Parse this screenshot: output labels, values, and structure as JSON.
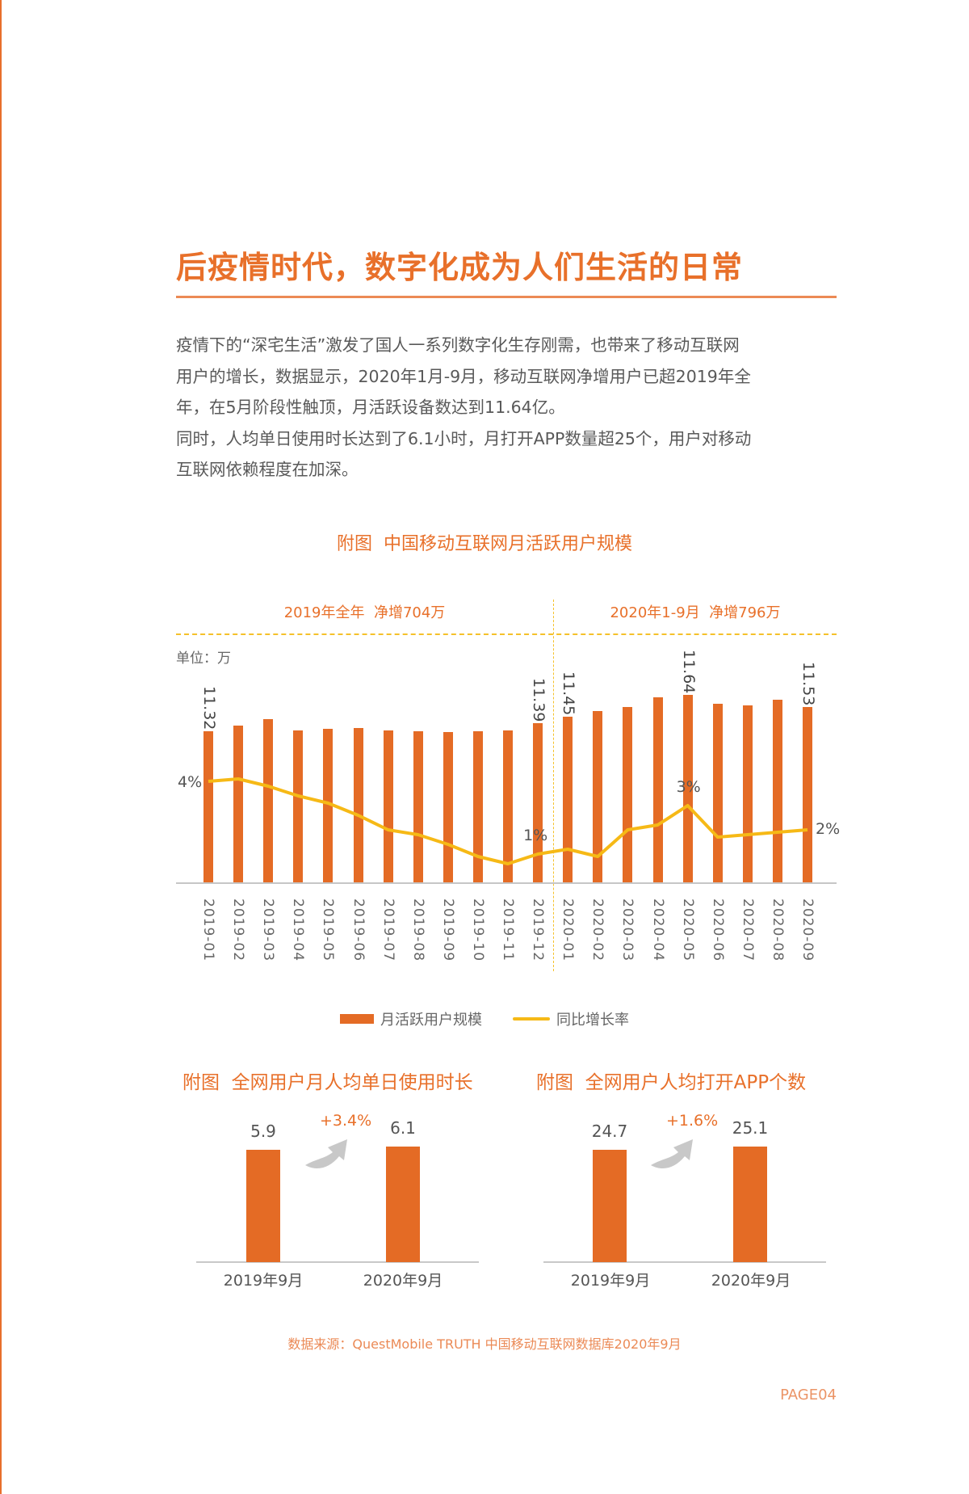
{
  "page": {
    "title": "后疫情时代，数字化成为人们生活的日常",
    "body_lines": [
      "疫情下的“深宅生活”激发了国人一系列数字化生存刚需，也带来了移动互联网",
      "用户的增长，数据显示，2020年1月-9月，移动互联网净增用户已超2019年全",
      "年，在5月阶段性触顶，月活跃设备数达到11.64亿。",
      "同时，人均单日使用时长达到了6.1小时，月打开APP数量超25个，用户对移动",
      "互联网依赖程度在加深。"
    ],
    "source": "数据来源：QuestMobile TRUTH 中国移动互联网数据库2020年9月",
    "page_number": "PAGE04",
    "colors": {
      "accent": "#e8702a",
      "bar": "#e46b25",
      "line": "#f6b916",
      "divider": "#f5c12a"
    }
  },
  "main_chart": {
    "title": "附图  中国移动互联网月活跃用户规模",
    "period_left": "2019年全年  净增704万",
    "period_right": "2020年1-9月  净增796万",
    "unit": "单位：万",
    "legend": {
      "bar": "月活跃用户规模",
      "line": "同比增长率"
    },
    "value_labels": [
      {
        "index": 0,
        "text": "11.32"
      },
      {
        "index": 11,
        "text": "11.39"
      },
      {
        "index": 12,
        "text": "11.45"
      },
      {
        "index": 16,
        "text": "11.64"
      },
      {
        "index": 20,
        "text": "11.53"
      }
    ],
    "pct_labels": [
      {
        "index": 0,
        "text": "4%"
      },
      {
        "index": 11,
        "text": "1%"
      },
      {
        "index": 16,
        "text": "3%"
      },
      {
        "index": 20,
        "text": "2%"
      }
    ]
  },
  "small_chart_1": {
    "title": "附图  全网用户月人均单日使用时长",
    "values": [
      "5.9",
      "6.1"
    ],
    "categories": [
      "2019年9月",
      "2020年9月"
    ],
    "growth": "+3.4%"
  },
  "small_chart_2": {
    "title": "附图  全网用户人均打开APP个数",
    "values": [
      "24.7",
      "25.1"
    ],
    "categories": [
      "2019年9月",
      "2020年9月"
    ],
    "growth": "+1.6%"
  },
  "chart_data": [
    {
      "type": "bar",
      "title": "附图  中国移动互联网月活跃用户规模",
      "xlabel": "",
      "ylabel": "单位：万",
      "categories": [
        "2019-01",
        "2019-02",
        "2019-03",
        "2019-04",
        "2019-05",
        "2019-06",
        "2019-07",
        "2019-08",
        "2019-09",
        "2019-10",
        "2019-11",
        "2019-12",
        "2020-01",
        "2020-02",
        "2020-03",
        "2020-04",
        "2020-05",
        "2020-06",
        "2020-07",
        "2020-08",
        "2020-09"
      ],
      "series": [
        {
          "name": "月活跃用户规模",
          "type": "bar",
          "unit": "亿",
          "values": [
            11.32,
            11.37,
            11.43,
            11.33,
            11.34,
            11.35,
            11.33,
            11.32,
            11.31,
            11.32,
            11.33,
            11.39,
            11.45,
            11.5,
            11.53,
            11.62,
            11.64,
            11.56,
            11.55,
            11.6,
            11.53
          ]
        },
        {
          "name": "同比增长率",
          "type": "line",
          "unit": "%",
          "values": [
            4.0,
            4.1,
            3.8,
            3.4,
            3.1,
            2.6,
            2.0,
            1.8,
            1.4,
            0.9,
            0.6,
            1.0,
            1.2,
            0.9,
            2.0,
            2.2,
            3.0,
            1.7,
            1.8,
            1.9,
            2.0
          ]
        }
      ],
      "annotations": [
        "2019年全年  净增704万",
        "2020年1-9月  净增796万",
        "11.32",
        "11.39",
        "11.45",
        "11.64",
        "11.53",
        "4%",
        "1%",
        "3%",
        "2%"
      ],
      "legend": [
        "月活跃用户规模",
        "同比增长率"
      ],
      "legend_position": "bottom",
      "grid": false
    },
    {
      "type": "bar",
      "title": "附图  全网用户月人均单日使用时长",
      "categories": [
        "2019年9月",
        "2020年9月"
      ],
      "values": [
        5.9,
        6.1
      ],
      "annotations": [
        "+3.4%"
      ],
      "grid": false
    },
    {
      "type": "bar",
      "title": "附图  全网用户人均打开APP个数",
      "categories": [
        "2019年9月",
        "2020年9月"
      ],
      "values": [
        24.7,
        25.1
      ],
      "annotations": [
        "+1.6%"
      ],
      "grid": false
    }
  ]
}
